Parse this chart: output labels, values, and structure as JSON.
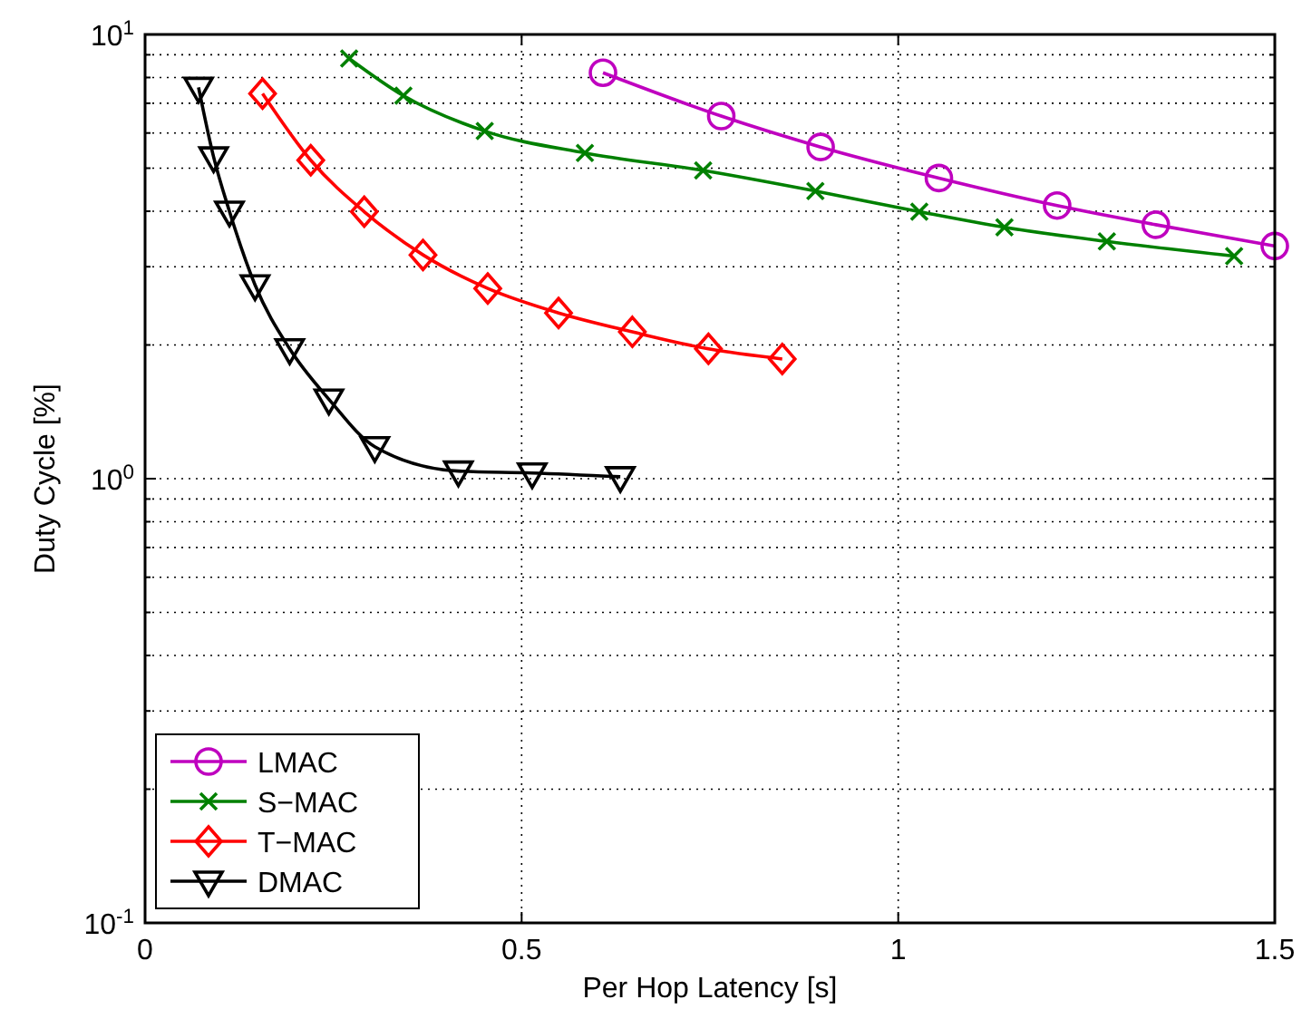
{
  "chart_data": {
    "type": "line",
    "xlabel": "Per Hop Latency [s]",
    "ylabel": "Duty Cycle [%]",
    "xlim": [
      0,
      1.5
    ],
    "xticks": [
      0,
      0.5,
      1,
      1.5
    ],
    "ylim": [
      0.1,
      10
    ],
    "yticks": [
      {
        "value": 0.1,
        "label": "10$^{-1}$"
      },
      {
        "value": 1,
        "label": "10$^{0}$"
      },
      {
        "value": 10,
        "label": "10$^{1}$"
      }
    ],
    "log": "y",
    "grid": true,
    "legend": "bottom left",
    "line_style": "solid",
    "series": [
      {
        "name": "LMAC",
        "color": "#bf00bf",
        "marker": "circle",
        "x": [
          0.608,
          0.765,
          0.897,
          1.054,
          1.211,
          1.342,
          1.5
        ],
        "values": [
          8.2,
          6.55,
          5.58,
          4.75,
          4.12,
          3.73,
          3.34
        ]
      },
      {
        "name": "S−MAC",
        "color": "#008000",
        "marker": "cross",
        "x": [
          0.271,
          0.343,
          0.451,
          0.584,
          0.741,
          0.89,
          1.028,
          1.141,
          1.277,
          1.446
        ],
        "values": [
          8.83,
          7.28,
          6.06,
          5.41,
          4.94,
          4.44,
          3.99,
          3.68,
          3.42,
          3.17
        ]
      },
      {
        "name": "T−MAC",
        "color": "#ff0000",
        "marker": "diamond",
        "x": [
          0.156,
          0.22,
          0.291,
          0.369,
          0.455,
          0.549,
          0.647,
          0.748,
          0.846
        ],
        "values": [
          7.36,
          5.21,
          3.99,
          3.19,
          2.68,
          2.36,
          2.14,
          1.96,
          1.86
        ]
      },
      {
        "name": "DMAC",
        "color": "#000000",
        "marker": "triangle",
        "x": [
          0.071,
          0.091,
          0.112,
          0.146,
          0.192,
          0.244,
          0.305,
          0.416,
          0.514,
          0.631
        ],
        "values": [
          7.6,
          5.3,
          4.0,
          2.73,
          1.96,
          1.51,
          1.18,
          1.04,
          1.03,
          1.01
        ]
      }
    ]
  }
}
